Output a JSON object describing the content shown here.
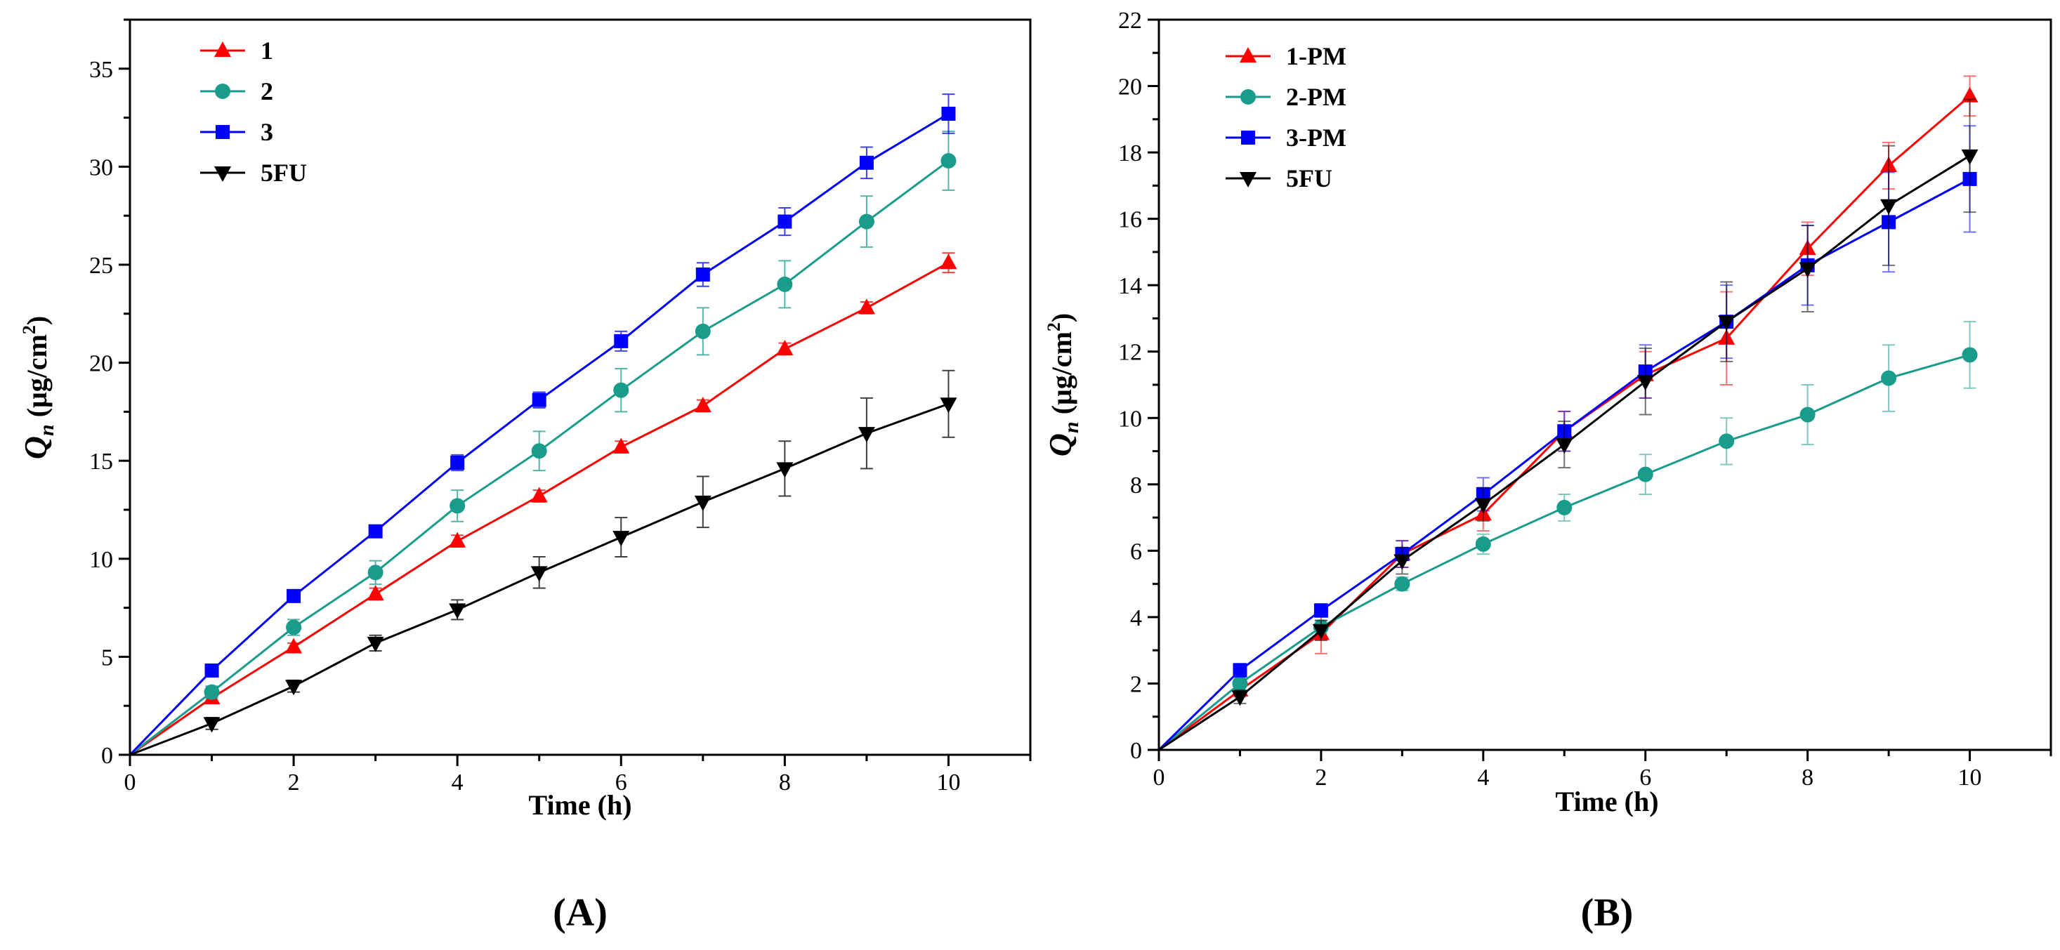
{
  "figure": {
    "panels": [
      "A",
      "B"
    ]
  },
  "chart_data": [
    {
      "type": "line",
      "panel_label": "(A)",
      "title": "",
      "xlabel": "Time (h)",
      "ylabel_main": "Q",
      "ylabel_sub": "n",
      "ylabel_unit_pre": " (μg/cm",
      "ylabel_sup": "2",
      "ylabel_unit_post": ")",
      "xlim": [
        0,
        11
      ],
      "ylim": [
        0,
        37.5
      ],
      "xticks": [
        0,
        2,
        4,
        6,
        8,
        10
      ],
      "yticks": [
        0,
        5,
        10,
        15,
        20,
        25,
        30,
        35
      ],
      "grid": false,
      "legend_position": "top-left",
      "x": [
        0,
        1,
        2,
        3,
        4,
        5,
        6,
        7,
        8,
        9,
        10
      ],
      "series": [
        {
          "name": "1",
          "color": "#ff0000",
          "marker": "triangle-up",
          "values": [
            0,
            2.9,
            5.5,
            8.2,
            10.9,
            13.2,
            15.7,
            17.8,
            20.7,
            22.8,
            25.1
          ],
          "errors": [
            0,
            0.2,
            0.2,
            0.3,
            0.3,
            0.3,
            0.3,
            0.3,
            0.3,
            0.3,
            0.5
          ]
        },
        {
          "name": "2",
          "color": "#1a9c8c",
          "marker": "circle",
          "values": [
            0,
            3.2,
            6.5,
            9.3,
            12.7,
            15.5,
            18.6,
            21.6,
            24.0,
            27.2,
            30.3
          ],
          "errors": [
            0,
            0.3,
            0.4,
            0.6,
            0.8,
            1.0,
            1.1,
            1.2,
            1.2,
            1.3,
            1.5
          ]
        },
        {
          "name": "3",
          "color": "#0000ff",
          "marker": "square",
          "values": [
            0,
            4.3,
            8.1,
            11.4,
            14.9,
            18.1,
            21.1,
            24.5,
            27.2,
            30.2,
            32.7
          ],
          "errors": [
            0,
            0.2,
            0.3,
            0.3,
            0.4,
            0.4,
            0.5,
            0.6,
            0.7,
            0.8,
            1.0
          ]
        },
        {
          "name": "5FU",
          "color": "#000000",
          "marker": "triangle-down",
          "values": [
            0,
            1.6,
            3.5,
            5.7,
            7.4,
            9.3,
            11.1,
            12.9,
            14.6,
            16.4,
            17.9
          ],
          "errors": [
            0,
            0.3,
            0.3,
            0.4,
            0.5,
            0.8,
            1.0,
            1.3,
            1.4,
            1.8,
            1.7
          ]
        }
      ]
    },
    {
      "type": "line",
      "panel_label": "(B)",
      "title": "",
      "xlabel": "Time (h)",
      "ylabel_main": "Q",
      "ylabel_sub": "n",
      "ylabel_unit_pre": " (μg/cm",
      "ylabel_sup": "2",
      "ylabel_unit_post": ")",
      "xlim": [
        0,
        11
      ],
      "ylim": [
        0,
        22
      ],
      "xticks": [
        0,
        2,
        4,
        6,
        8,
        10
      ],
      "yticks": [
        0,
        2,
        4,
        6,
        8,
        10,
        12,
        14,
        16,
        18,
        20,
        22
      ],
      "grid": false,
      "legend_position": "top-left",
      "x": [
        0,
        1,
        2,
        3,
        4,
        5,
        6,
        7,
        8,
        9,
        10
      ],
      "series": [
        {
          "name": "1-PM",
          "color": "#ff0000",
          "marker": "triangle-up",
          "values": [
            0,
            1.8,
            3.5,
            5.9,
            7.1,
            9.6,
            11.3,
            12.4,
            15.1,
            17.6,
            19.7
          ],
          "errors": [
            0,
            0.2,
            0.6,
            0.4,
            0.5,
            0.6,
            0.7,
            1.4,
            0.8,
            0.7,
            0.6
          ]
        },
        {
          "name": "2-PM",
          "color": "#1a9c8c",
          "marker": "circle",
          "values": [
            0,
            2.0,
            3.7,
            5.0,
            6.2,
            7.3,
            8.3,
            9.3,
            10.1,
            11.2,
            11.9
          ],
          "errors": [
            0,
            0.2,
            0.2,
            0.2,
            0.3,
            0.4,
            0.6,
            0.7,
            0.9,
            1.0,
            1.0
          ]
        },
        {
          "name": "3-PM",
          "color": "#0000ff",
          "marker": "square",
          "values": [
            0,
            2.4,
            4.2,
            5.9,
            7.7,
            9.6,
            11.4,
            12.9,
            14.6,
            15.9,
            17.2
          ],
          "errors": [
            0,
            0.2,
            0.2,
            0.4,
            0.5,
            0.6,
            0.8,
            1.1,
            1.2,
            1.5,
            1.6
          ]
        },
        {
          "name": "5FU",
          "color": "#000000",
          "marker": "triangle-down",
          "values": [
            0,
            1.6,
            3.6,
            5.7,
            7.4,
            9.2,
            11.1,
            12.9,
            14.5,
            16.4,
            17.9
          ],
          "errors": [
            0,
            0.2,
            0.3,
            0.4,
            0.5,
            0.7,
            1.0,
            1.2,
            1.3,
            1.8,
            1.7
          ]
        }
      ]
    }
  ]
}
